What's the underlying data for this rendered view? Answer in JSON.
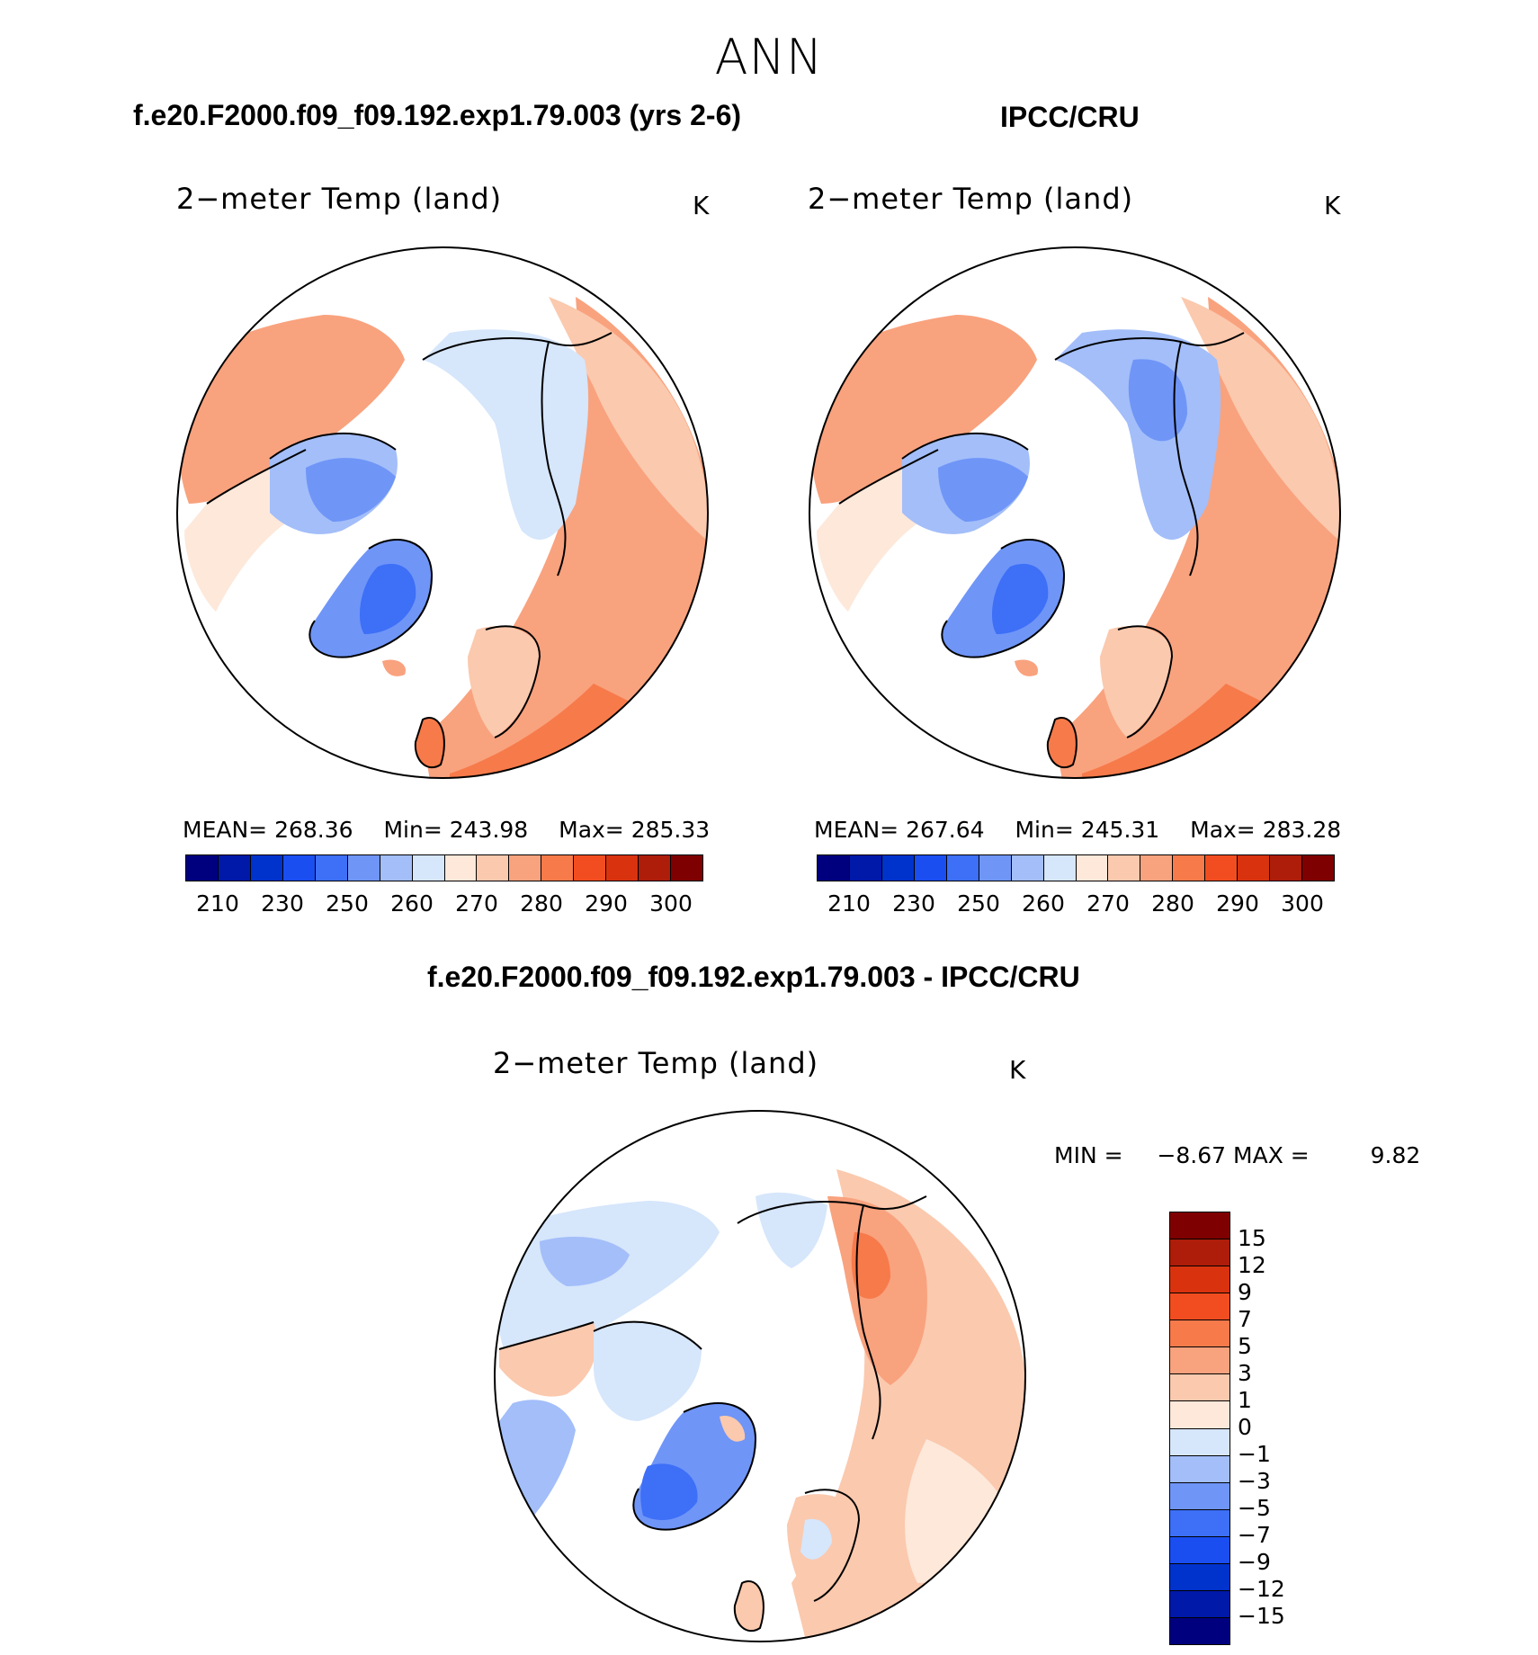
{
  "page": {
    "season": "ANN"
  },
  "panels": [
    {
      "case_title": "f.e20.F2000.f09_f09.192.exp1.79.003 (yrs 2-6)",
      "variable": "2−meter Temp (land)",
      "units": "K",
      "mean_label": "MEAN=",
      "mean": "268.36",
      "min_label": "Min=",
      "min": "243.98",
      "max_label": "Max=",
      "max": "285.33"
    },
    {
      "case_title": "IPCC/CRU",
      "variable": "2−meter Temp (land)",
      "units": "K",
      "mean_label": "MEAN=",
      "mean": "267.64",
      "min_label": "Min=",
      "min": "245.31",
      "max_label": "Max=",
      "max": "283.28"
    }
  ],
  "diff_panel": {
    "case_title": "f.e20.F2000.f09_f09.192.exp1.79.003 - IPCC/CRU",
    "variable": "2−meter Temp (land)",
    "units": "K",
    "min_label": "MIN =",
    "min": "−8.67",
    "max_label": "MAX =",
    "max": "9.82"
  },
  "colorbar_abs": {
    "colors": [
      "#00007f",
      "#0019a8",
      "#0033cc",
      "#1a4ef0",
      "#3d6ff7",
      "#6f95f7",
      "#a3bef9",
      "#d6e6fb",
      "#fde8da",
      "#fbc9ae",
      "#f9a27e",
      "#f77a4a",
      "#f24d20",
      "#d8330e",
      "#ad1d09",
      "#7f0000"
    ],
    "labels": [
      "210",
      "230",
      "250",
      "260",
      "270",
      "280",
      "290",
      "300"
    ]
  },
  "colorbar_diff": {
    "colors": [
      "#7f0000",
      "#ad1d09",
      "#d8330e",
      "#f24d20",
      "#f77a4a",
      "#f9a27e",
      "#fbc9ae",
      "#fde8da",
      "#d6e6fb",
      "#a3bef9",
      "#6f95f7",
      "#3d6ff7",
      "#1a4ef0",
      "#0033cc",
      "#0019a8",
      "#00007f"
    ],
    "labels": [
      "15",
      "12",
      "9",
      "7",
      "5",
      "3",
      "1",
      "0",
      "−1",
      "−3",
      "−5",
      "−7",
      "−9",
      "−12",
      "−15"
    ]
  }
}
